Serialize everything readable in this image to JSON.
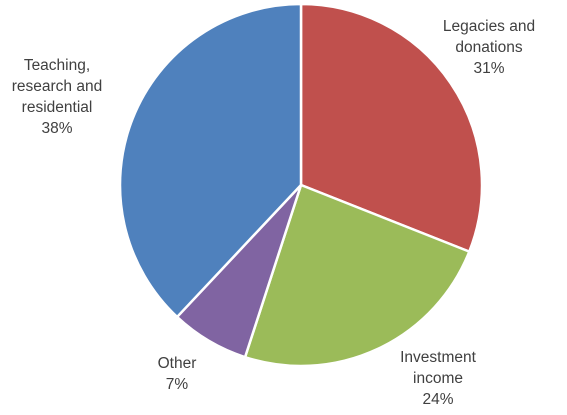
{
  "chart_data": {
    "type": "pie",
    "start_angle_deg": 0,
    "direction": "clockwise",
    "slices": [
      {
        "label_lines": [
          "Legacies and",
          "donations"
        ],
        "value": 31,
        "value_label": "31%",
        "color": "#C0504D"
      },
      {
        "label_lines": [
          "Investment",
          "income"
        ],
        "value": 24,
        "value_label": "24%",
        "color": "#9BBB59"
      },
      {
        "label_lines": [
          "Other"
        ],
        "value": 7,
        "value_label": "7%",
        "color": "#8064A2"
      },
      {
        "label_lines": [
          "Teaching,",
          "research and",
          "residential"
        ],
        "value": 38,
        "value_label": "38%",
        "color": "#4F81BD"
      }
    ]
  }
}
